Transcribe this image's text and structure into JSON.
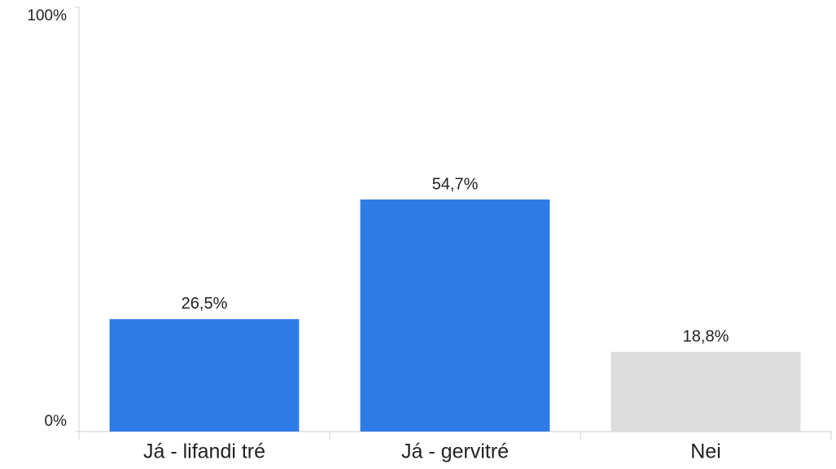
{
  "chart_data": {
    "type": "bar",
    "categories": [
      "Já - lifandi tré",
      "Já - gervitré",
      "Nei"
    ],
    "values": [
      26.5,
      54.7,
      18.8
    ],
    "value_labels": [
      "26,5%",
      "54,7%",
      "18,8%"
    ],
    "colors": [
      "#2f7be6",
      "#2f7be6",
      "#dcdcdc"
    ],
    "ylim": [
      0,
      100
    ],
    "yticks": [
      {
        "value": 0,
        "label": "0%"
      },
      {
        "value": 100,
        "label": "100%"
      }
    ]
  }
}
